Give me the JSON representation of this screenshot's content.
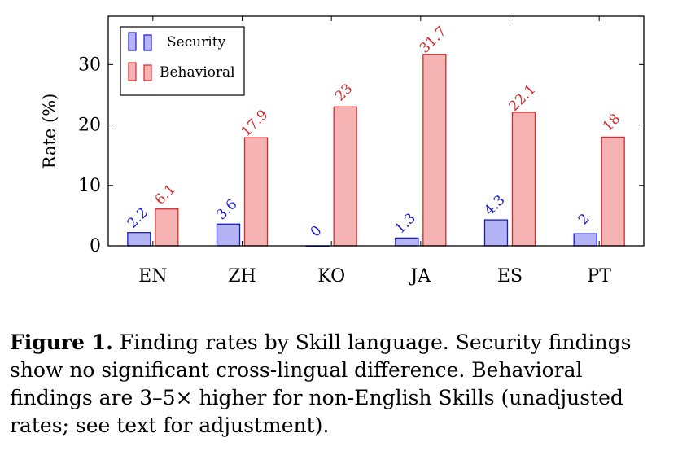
{
  "chart_data": {
    "type": "bar",
    "categories": [
      "EN",
      "ZH",
      "KO",
      "JA",
      "ES",
      "PT"
    ],
    "series": [
      {
        "name": "Security",
        "values": [
          2.2,
          3.6,
          0,
          1.3,
          4.3,
          2
        ],
        "labels": [
          "2.2",
          "3.6",
          "0",
          "1.3",
          "4.3",
          "2"
        ],
        "fill": "#b3b3f5",
        "stroke": "#1a1ad6",
        "label_color": "#1a1ad6"
      },
      {
        "name": "Behavioral",
        "values": [
          6.1,
          17.9,
          23,
          31.7,
          22.1,
          18
        ],
        "labels": [
          "6.1",
          "17.9",
          "23",
          "31.7",
          "22.1",
          "18"
        ],
        "fill": "#f5b3b3",
        "stroke": "#d62a2a",
        "label_color": "#d62a2a"
      }
    ],
    "ylabel": "Rate (%)",
    "xlabel": "",
    "ylim": [
      0,
      38
    ],
    "yticks": [
      0,
      10,
      20,
      30
    ],
    "ytick_labels": [
      "0",
      "10",
      "20",
      "30"
    ],
    "grid": false,
    "legend": "top-left"
  },
  "caption": {
    "label": "Figure 1.",
    "text": " Finding rates by Skill language. Security findings show no significant cross-lingual difference. Behavioral findings are 3–5× higher for non-English Skills (unadjusted rates; see text for adjustment)."
  }
}
